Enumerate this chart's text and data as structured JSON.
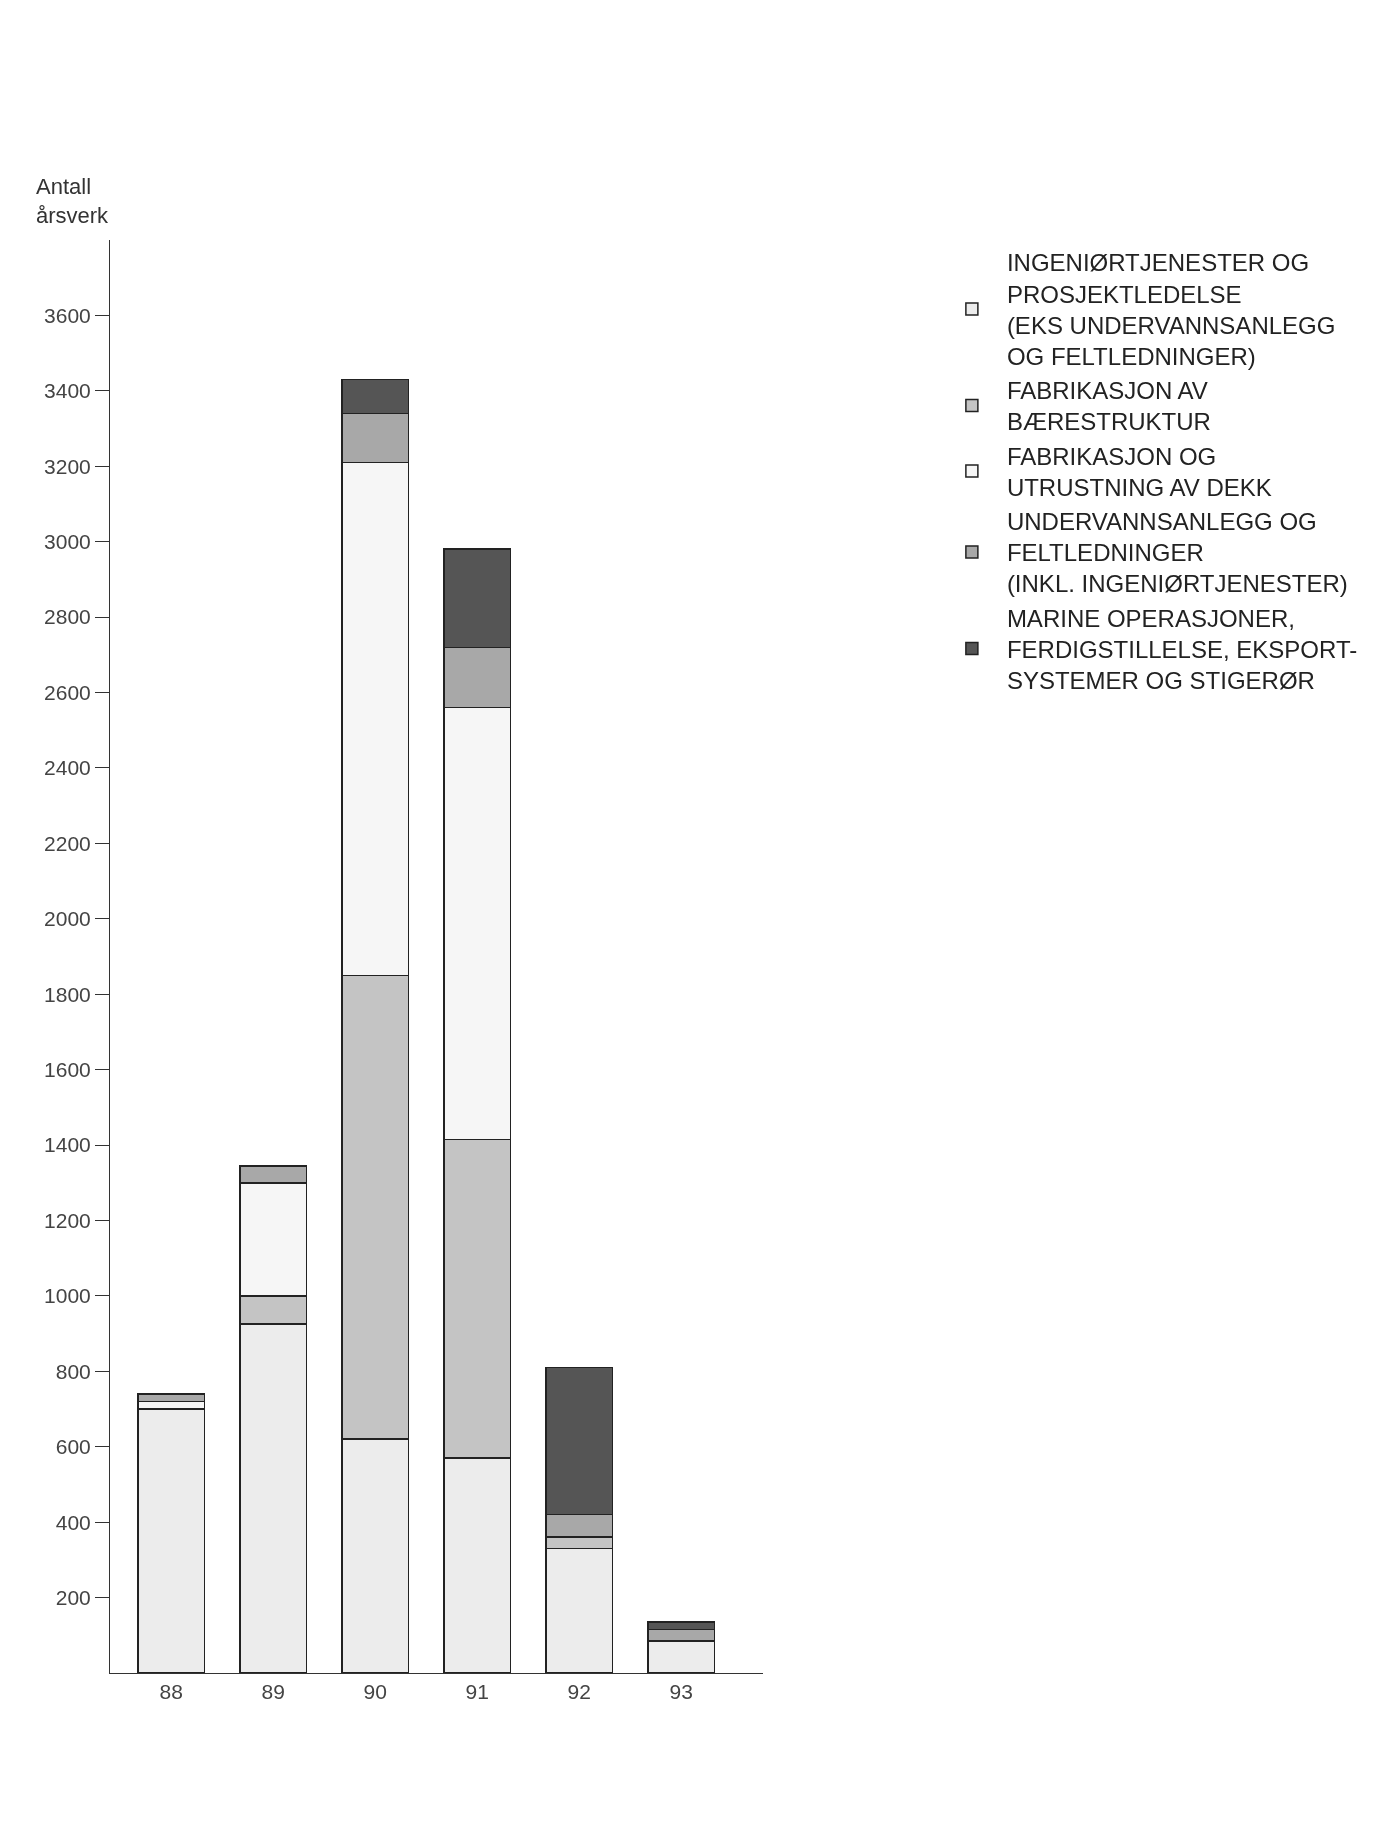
{
  "chart_data": {
    "type": "bar",
    "stacked": true,
    "ylabel": "Antall\nårsverk",
    "categories": [
      "88",
      "89",
      "90",
      "91",
      "92",
      "93"
    ],
    "series": [
      {
        "name": "INGENIØRTJENESTER OG\nPROSJEKTLEDELSE\n(EKS UNDERVANNSANLEGG\nOG FELTLEDNINGER)",
        "color": "#ececec",
        "values": [
          700,
          925,
          620,
          570,
          330,
          85
        ]
      },
      {
        "name": "FABRIKASJON AV\nBÆRESTRUKTUR",
        "color": "#c4c4c4",
        "values": [
          null,
          75,
          1230,
          845,
          30,
          null
        ]
      },
      {
        "name": "FABRIKASJON OG\nUTRUSTNING AV DEKK",
        "color": "#f6f6f6",
        "values": [
          20,
          300,
          1360,
          1145,
          null,
          null
        ]
      },
      {
        "name": "UNDERVANNSANLEGG OG\nFELTLEDNINGER\n(INKL. INGENIØRTJENESTER)",
        "color": "#a8a8a8",
        "values": [
          20,
          45,
          130,
          160,
          60,
          30
        ]
      },
      {
        "name": "MARINE OPERASJONER,\nFERDIGSTILLELSE, EKSPORT-\nSYSTEMER OG STIGERØR",
        "color": "#555555",
        "values": [
          null,
          null,
          90,
          260,
          390,
          20
        ]
      }
    ],
    "ylim": [
      0,
      3800
    ],
    "yticks": [
      200,
      400,
      600,
      800,
      1000,
      1200,
      1400,
      1600,
      1800,
      2000,
      2200,
      2400,
      2600,
      2800,
      3000,
      3200,
      3400,
      3600
    ],
    "legend": "top right"
  }
}
